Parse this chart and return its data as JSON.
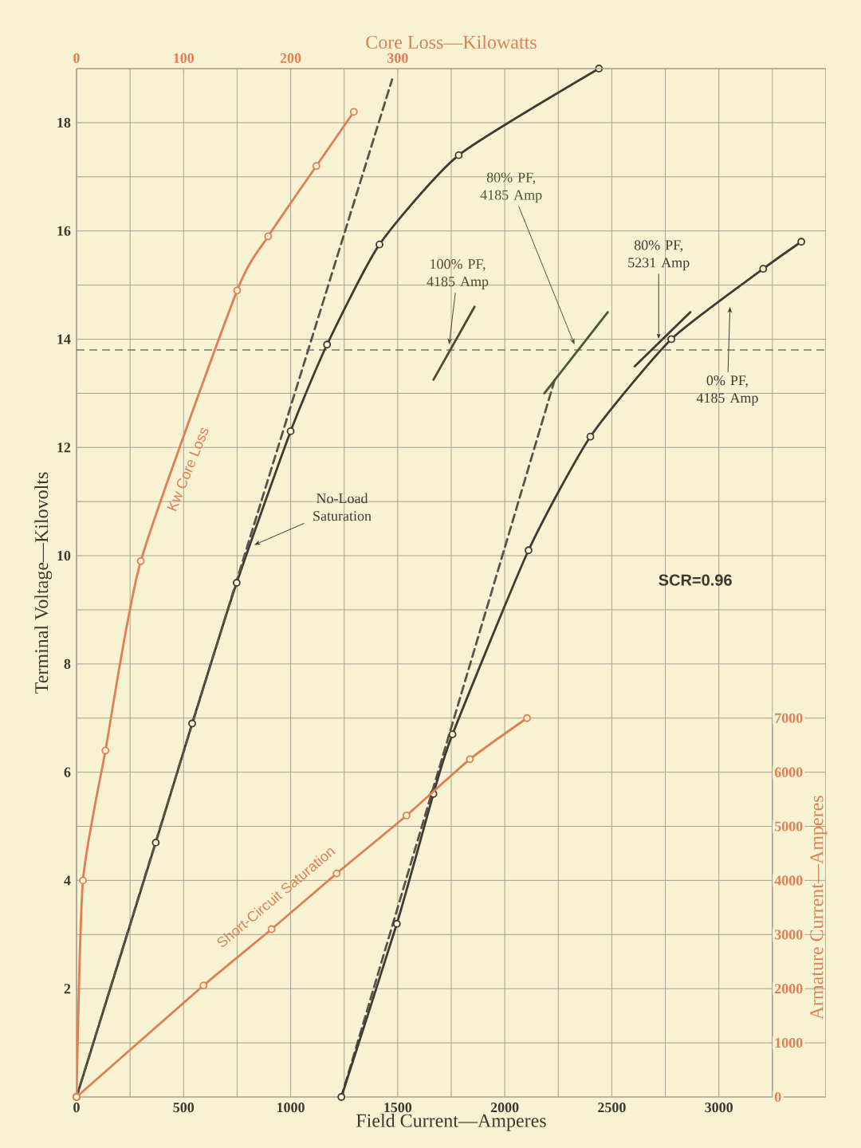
{
  "chart_data": {
    "type": "line",
    "xlabel": "Field Current—Amperes",
    "ylabel": "Terminal Voltage—Kilovolts",
    "x2label": "Core Loss—Kilowatts",
    "y2label": "Armature Current—Amperes",
    "xlim": [
      0,
      3500
    ],
    "xticks": [
      0,
      {
        "value": 250,
        "label": null
      },
      500,
      {
        "value": 750,
        "label": null
      },
      1000,
      {
        "value": 1250,
        "label": null
      },
      1500,
      {
        "value": 1750,
        "label": null
      },
      2000,
      {
        "value": 2250,
        "label": null
      },
      2500,
      {
        "value": 2750,
        "label": null
      },
      3000,
      {
        "value": 3250,
        "label": null
      }
    ],
    "ylim": [
      0,
      19
    ],
    "yticks": [
      {
        "value": 1,
        "label": null
      },
      2,
      {
        "value": 3,
        "label": null
      },
      4,
      {
        "value": 5,
        "label": null
      },
      6,
      {
        "value": 7,
        "label": null
      },
      8,
      {
        "value": 9,
        "label": null
      },
      10,
      {
        "value": 11,
        "label": null
      },
      12,
      {
        "value": 13,
        "label": null
      },
      14,
      {
        "value": 15,
        "label": null
      },
      16,
      {
        "value": 17,
        "label": null
      },
      18
    ],
    "x2lim": [
      0,
      700
    ],
    "x2ticks": [
      0,
      100,
      200,
      300
    ],
    "y2lim": [
      0,
      7000
    ],
    "y2ticks": [
      0,
      1000,
      2000,
      3000,
      4000,
      5000,
      6000,
      7000
    ],
    "grid": true,
    "series": [
      {
        "name": "Kw Core Loss",
        "color": "#e07f55",
        "axis": "x2",
        "marker": "circle",
        "x": [
          0,
          6,
          27,
          60,
          150,
          179,
          224,
          259
        ],
        "values": [
          0,
          4.0,
          6.4,
          9.9,
          14.9,
          15.9,
          17.2,
          18.2
        ]
      },
      {
        "name": "No-Load Saturation",
        "color": "#3d3d33",
        "marker": "circle",
        "x": [
          0,
          370,
          540,
          748,
          1000,
          1170,
          1415,
          1785,
          2440
        ],
        "values": [
          0,
          4.7,
          6.9,
          9.5,
          12.3,
          13.9,
          15.75,
          17.4,
          19.0
        ]
      },
      {
        "color": "#55554a",
        "line_style": "dashed",
        "marker": "none",
        "x": [
          0,
          1474
        ],
        "values": [
          0,
          18.8
        ]
      },
      {
        "color": "#55554a",
        "line_style": "dashed",
        "marker": "none",
        "x": [
          1237,
          2237
        ],
        "values": [
          0,
          13.3
        ]
      },
      {
        "name": "0% PF, 4185 Amp",
        "color": "#3d3d33",
        "marker": "circle",
        "x": [
          1237,
          1496,
          1667,
          1756,
          2111,
          2400,
          2778,
          3207,
          3385
        ],
        "values": [
          0,
          3.2,
          5.6,
          6.7,
          10.1,
          12.2,
          14.0,
          15.3,
          15.8
        ]
      },
      {
        "name": "80% PF, 4185 Amp",
        "color": "#4a5a3a",
        "marker": "none",
        "x": [
          2185,
          2481
        ],
        "values": [
          13.0,
          14.5
        ]
      },
      {
        "name": "100% PF, 4185 Amp",
        "color": "#5a4535",
        "marker": "none",
        "x": [
          1667,
          1859
        ],
        "values": [
          13.25,
          14.6
        ]
      },
      {
        "name": "80% PF, 5231 Amp",
        "color": "#3d3d33",
        "marker": "none",
        "x": [
          2607,
          2867
        ],
        "values": [
          13.5,
          14.5
        ]
      },
      {
        "name": "Short-Circuit Saturation",
        "color": "#e07f55",
        "axis": "y2",
        "marker": "circle",
        "x": [
          0,
          593,
          911,
          1215,
          1541,
          1837,
          2104
        ],
        "values": [
          0,
          2060,
          3100,
          4130,
          5200,
          6240,
          7000
        ]
      }
    ],
    "ref_lines": [
      {
        "axis": "y",
        "value": 13.8,
        "color": "#77776a",
        "line_style": "dashed"
      }
    ],
    "annotations": [
      {
        "text": "SCR=0.96"
      }
    ]
  }
}
